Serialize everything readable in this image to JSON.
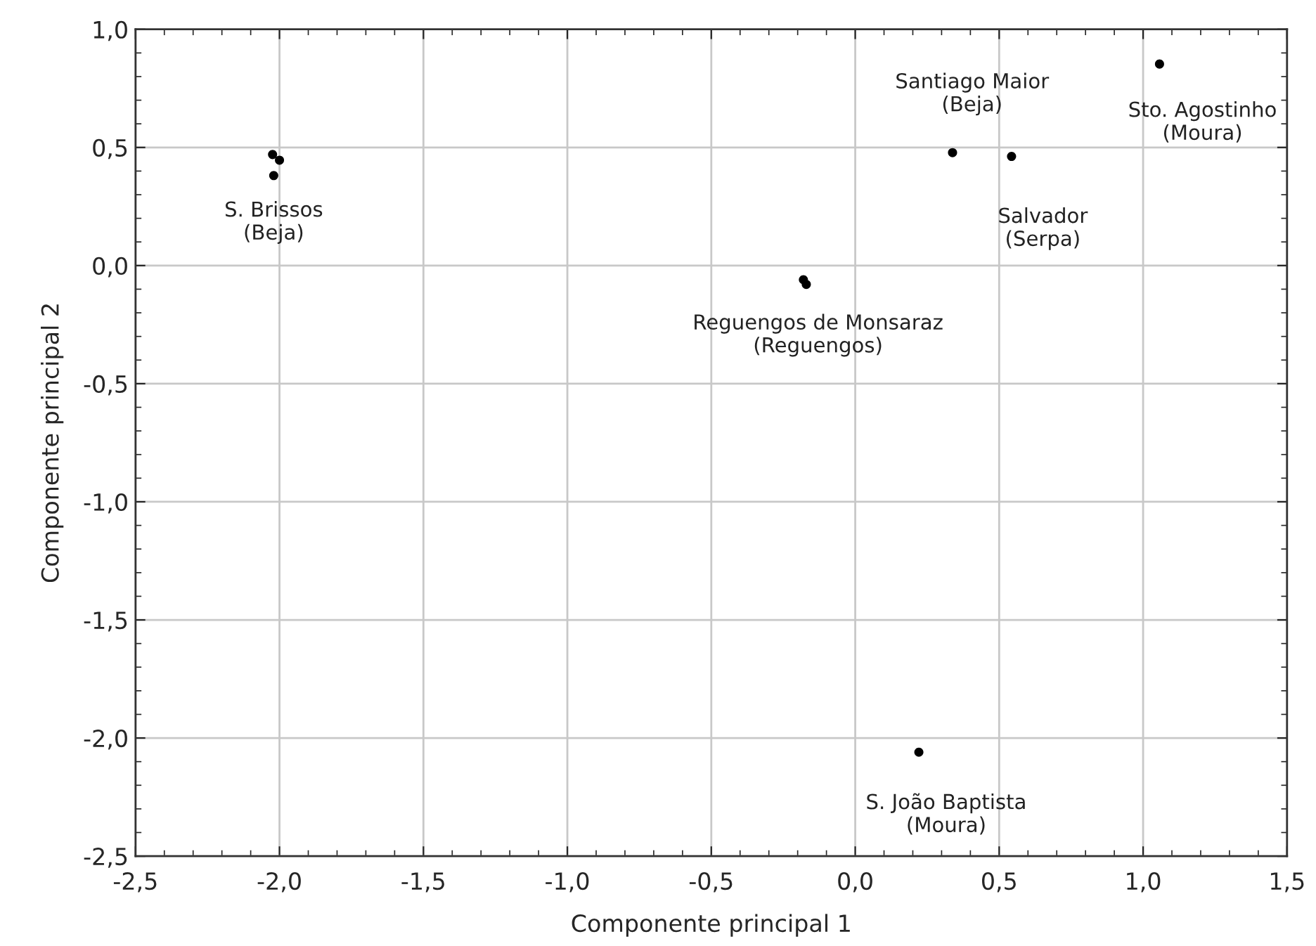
{
  "chart_data": {
    "type": "scatter",
    "xlabel": "Componente principal 1",
    "ylabel": "Componente principal 2",
    "x": [
      -2.024,
      -2.0,
      -2.02,
      -0.18,
      -0.17,
      0.338,
      0.543,
      1.057,
      0.221
    ],
    "series": [
      {
        "color": "#000000",
        "values": [
          0.47,
          0.446,
          0.381,
          -0.06,
          -0.08,
          0.478,
          0.462,
          0.853,
          -2.06
        ]
      }
    ],
    "marker": "circle",
    "grid": true,
    "xlim": [
      -2.5,
      1.5
    ],
    "ylim": [
      -2.5,
      1.0
    ],
    "xticks": [
      {
        "value": -2.5,
        "label": "-2,5"
      },
      {
        "value": -2.0,
        "label": "-2,0"
      },
      {
        "value": -1.5,
        "label": "-1,5"
      },
      {
        "value": -1.0,
        "label": "-1,0"
      },
      {
        "value": -0.5,
        "label": "-0,5"
      },
      {
        "value": 0.0,
        "label": "0,0"
      },
      {
        "value": 0.5,
        "label": "0,5"
      },
      {
        "value": 1.0,
        "label": "1,0"
      },
      {
        "value": 1.5,
        "label": "1,5"
      }
    ],
    "yticks": [
      {
        "value": -2.5,
        "label": "-2,5"
      },
      {
        "value": -2.0,
        "label": "-2,0"
      },
      {
        "value": -1.5,
        "label": "-1,5"
      },
      {
        "value": -1.0,
        "label": "-1,0"
      },
      {
        "value": -0.5,
        "label": "-0,5"
      },
      {
        "value": 0.0,
        "label": "0,0"
      },
      {
        "value": 0.5,
        "label": "0,5"
      },
      {
        "value": 1.0,
        "label": "1,0"
      }
    ],
    "annotations": [
      {
        "text": "S. Brissos\n(Beja)",
        "x": -2.02,
        "y": 0.381
      },
      {
        "text": "Reguengos de Monsaraz\n(Reguengos)",
        "x": -0.17,
        "y": -0.08
      },
      {
        "text": "Santiago Maior\n(Beja)",
        "x": 0.338,
        "y": 0.478
      },
      {
        "text": "Sto. Agostinho\n(Moura)",
        "x": 1.057,
        "y": 0.853
      },
      {
        "text": "Salvador\n(Serpa)",
        "x": 0.543,
        "y": 0.462
      },
      {
        "text": "S. João Baptista\n(Moura)",
        "x": 0.221,
        "y": -2.06
      }
    ]
  }
}
